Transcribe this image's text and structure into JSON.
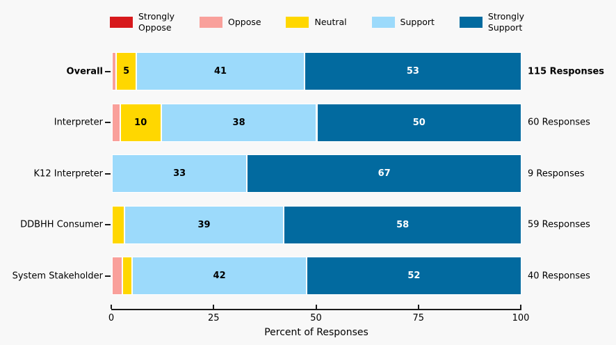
{
  "background_color": "#f8f8f8",
  "chart_data": {
    "type": "bar",
    "orientation": "horizontal",
    "stacked": true,
    "title": "",
    "xlabel": "Percent of Responses",
    "ylabel": "",
    "xlim": [
      0,
      100
    ],
    "x_ticks": [
      "0",
      "25",
      "50",
      "75",
      "100"
    ],
    "grid": false,
    "legend": {
      "position": "top-center",
      "frame": false,
      "entries": [
        {
          "label": "Strongly Oppose",
          "lines": [
            "Strongly",
            "Oppose"
          ],
          "color": "#d7191c"
        },
        {
          "label": "Oppose",
          "lines": [
            "Oppose"
          ],
          "color": "#f9a09b"
        },
        {
          "label": "Neutral",
          "lines": [
            "Neutral"
          ],
          "color": "#ffd700"
        },
        {
          "label": "Support",
          "lines": [
            "Support"
          ],
          "color": "#9cdafb"
        },
        {
          "label": "Strongly Support",
          "lines": [
            "Strongly",
            "Support"
          ],
          "color": "#026a9f"
        }
      ]
    },
    "series_names": [
      "Strongly Oppose",
      "Oppose",
      "Neutral",
      "Support",
      "Strongly Support"
    ],
    "rows": [
      {
        "category": "Overall",
        "bold": true,
        "responses": "115 Responses",
        "segments": [
          {
            "name": "Oppose",
            "value": 1,
            "label": "",
            "color": "#f9a09b",
            "label_color": "#000000"
          },
          {
            "name": "Neutral",
            "value": 5,
            "label": "5",
            "color": "#ffd700",
            "label_color": "#000000"
          },
          {
            "name": "Support",
            "value": 41,
            "label": "41",
            "color": "#9cdafb",
            "label_color": "#000000"
          },
          {
            "name": "Strongly Support",
            "value": 53,
            "label": "53",
            "color": "#026a9f",
            "label_color": "#ffffff"
          }
        ]
      },
      {
        "category": "Interpreter",
        "bold": false,
        "responses": "60 Responses",
        "segments": [
          {
            "name": "Oppose",
            "value": 2,
            "label": "",
            "color": "#f9a09b",
            "label_color": "#000000"
          },
          {
            "name": "Neutral",
            "value": 10,
            "label": "10",
            "color": "#ffd700",
            "label_color": "#000000"
          },
          {
            "name": "Support",
            "value": 38,
            "label": "38",
            "color": "#9cdafb",
            "label_color": "#000000"
          },
          {
            "name": "Strongly Support",
            "value": 50,
            "label": "50",
            "color": "#026a9f",
            "label_color": "#ffffff"
          }
        ]
      },
      {
        "category": "K12 Interpreter",
        "bold": false,
        "responses": "9 Responses",
        "segments": [
          {
            "name": "Support",
            "value": 33,
            "label": "33",
            "color": "#9cdafb",
            "label_color": "#000000"
          },
          {
            "name": "Strongly Support",
            "value": 67,
            "label": "67",
            "color": "#026a9f",
            "label_color": "#ffffff"
          }
        ]
      },
      {
        "category": "DDBHH Consumer",
        "bold": false,
        "responses": "59 Responses",
        "segments": [
          {
            "name": "Neutral",
            "value": 3,
            "label": "",
            "color": "#ffd700",
            "label_color": "#000000"
          },
          {
            "name": "Support",
            "value": 39,
            "label": "39",
            "color": "#9cdafb",
            "label_color": "#000000"
          },
          {
            "name": "Strongly Support",
            "value": 58,
            "label": "58",
            "color": "#026a9f",
            "label_color": "#ffffff"
          }
        ]
      },
      {
        "category": "System Stakeholder",
        "bold": false,
        "responses": "40 Responses",
        "segments": [
          {
            "name": "Oppose",
            "value": 2.5,
            "label": "",
            "color": "#f9a09b",
            "label_color": "#000000"
          },
          {
            "name": "Neutral",
            "value": 2.5,
            "label": "",
            "color": "#ffd700",
            "label_color": "#000000"
          },
          {
            "name": "Support",
            "value": 42.5,
            "label": "42",
            "color": "#9cdafb",
            "label_color": "#000000"
          },
          {
            "name": "Strongly Support",
            "value": 52.5,
            "label": "52",
            "color": "#026a9f",
            "label_color": "#ffffff"
          }
        ]
      }
    ]
  }
}
